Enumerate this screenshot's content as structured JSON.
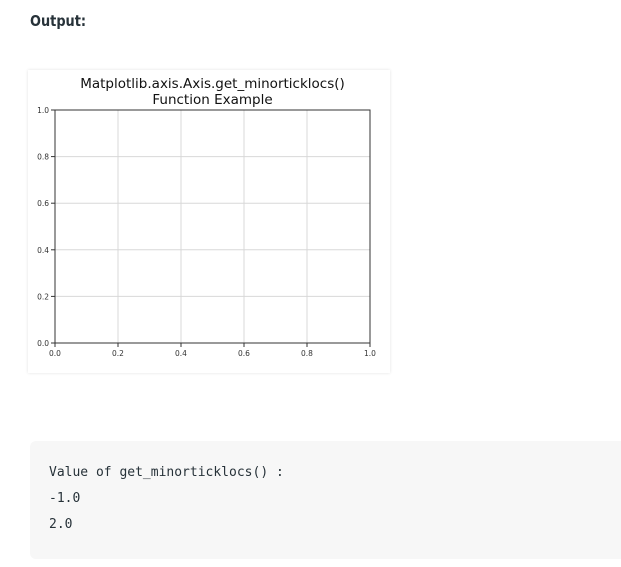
{
  "heading": "Output:",
  "chart_data": {
    "type": "line",
    "title": "Matplotlib.axis.Axis.get_minorticklocs()\nFunction Example",
    "xlim": [
      0.0,
      1.0
    ],
    "ylim": [
      0.0,
      1.0
    ],
    "xticks": [
      "0.0",
      "0.2",
      "0.4",
      "0.6",
      "0.8",
      "1.0"
    ],
    "yticks": [
      "0.0",
      "0.2",
      "0.4",
      "0.6",
      "0.8",
      "1.0"
    ],
    "grid": true,
    "series": []
  },
  "console": {
    "lines": [
      "Value of get_minorticklocs() :",
      "-1.0",
      "2.0"
    ]
  }
}
